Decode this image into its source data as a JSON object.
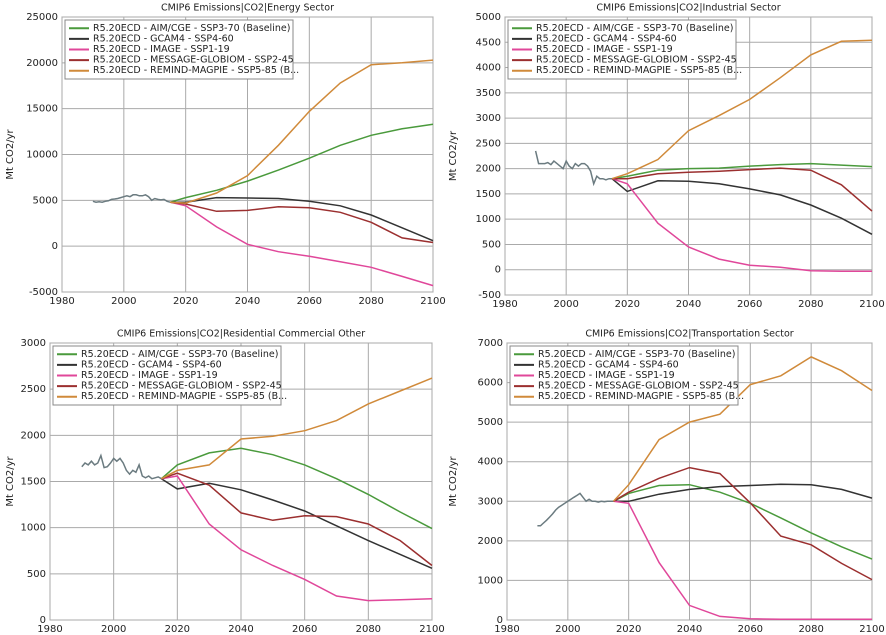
{
  "chart_data": [
    {
      "type": "line",
      "title": "CMIP6 Emissions|CO2|Energy Sector",
      "ylabel": "Mt CO2/yr",
      "xlim": [
        1980,
        2100
      ],
      "xticks": [
        1980,
        2000,
        2020,
        2040,
        2060,
        2080,
        2100
      ],
      "ylim": [
        -5000,
        25000
      ],
      "yticks": [
        -5000,
        0,
        5000,
        10000,
        15000,
        20000,
        25000
      ],
      "grid": true,
      "x": [
        2015,
        2020,
        2030,
        2040,
        2050,
        2060,
        2070,
        2080,
        2090,
        2100
      ],
      "history": {
        "color": "#6b7b80",
        "x": [
          1990,
          1991,
          1992,
          1993,
          1994,
          1995,
          1996,
          1997,
          1998,
          1999,
          2000,
          2001,
          2002,
          2003,
          2004,
          2005,
          2006,
          2007,
          2008,
          2009,
          2010,
          2011,
          2012,
          2013,
          2014,
          2015
        ],
        "values": [
          4900,
          4800,
          4850,
          4800,
          4900,
          4950,
          5100,
          5150,
          5200,
          5300,
          5400,
          5500,
          5400,
          5600,
          5600,
          5500,
          5500,
          5600,
          5400,
          5000,
          5200,
          5100,
          5050,
          5100,
          4900,
          4800
        ]
      },
      "series": [
        {
          "name": "R5.20ECD - AIM/CGE - SSP3-70 (Baseline)",
          "color": "#4a9a3c",
          "values": [
            4800,
            5300,
            6100,
            7100,
            8300,
            9600,
            11000,
            12100,
            12800,
            13300
          ]
        },
        {
          "name": "R5.20ECD - GCAM4 - SSP4-60",
          "color": "#333333",
          "values": [
            4800,
            4800,
            5300,
            5250,
            5200,
            4900,
            4400,
            3400,
            2000,
            600
          ]
        },
        {
          "name": "R5.20ECD - IMAGE - SSP1-19",
          "color": "#e0479a",
          "values": [
            4800,
            4400,
            2100,
            200,
            -600,
            -1100,
            -1700,
            -2300,
            -3300,
            -4300
          ]
        },
        {
          "name": "R5.20ECD - MESSAGE-GLOBIOM - SSP2-45",
          "color": "#9b2f2f",
          "values": [
            4800,
            4600,
            3800,
            3900,
            4300,
            4200,
            3700,
            2600,
            900,
            400
          ]
        },
        {
          "name": "R5.20ECD - REMIND-MAGPIE - SSP5-85 (B...",
          "color": "#d08a3a",
          "values": [
            4800,
            4700,
            5800,
            7700,
            11000,
            14700,
            17800,
            19800,
            20000,
            20300
          ]
        }
      ]
    },
    {
      "type": "line",
      "title": "CMIP6 Emissions|CO2|Industrial Sector",
      "ylabel": "Mt CO2/yr",
      "xlim": [
        1980,
        2100
      ],
      "xticks": [
        1980,
        2000,
        2020,
        2040,
        2060,
        2080,
        2100
      ],
      "ylim": [
        -500,
        5000
      ],
      "yticks": [
        -500,
        0,
        500,
        1000,
        1500,
        2000,
        2500,
        3000,
        3500,
        4000,
        4500,
        5000
      ],
      "grid": true,
      "x": [
        2015,
        2020,
        2030,
        2040,
        2050,
        2060,
        2070,
        2080,
        2090,
        2100
      ],
      "history": {
        "color": "#6b7b80",
        "x": [
          1990,
          1991,
          1992,
          1993,
          1994,
          1995,
          1996,
          1997,
          1998,
          1999,
          2000,
          2001,
          2002,
          2003,
          2004,
          2005,
          2006,
          2007,
          2008,
          2009,
          2010,
          2011,
          2012,
          2013,
          2014,
          2015
        ],
        "values": [
          2350,
          2100,
          2100,
          2100,
          2120,
          2080,
          2150,
          2100,
          2050,
          2000,
          2150,
          2050,
          2000,
          2100,
          2050,
          2100,
          2100,
          2050,
          1950,
          1700,
          1850,
          1800,
          1800,
          1780,
          1800,
          1800
        ]
      },
      "series": [
        {
          "name": "R5.20ECD - AIM/CGE - SSP3-70 (Baseline)",
          "color": "#4a9a3c",
          "values": [
            1800,
            1850,
            1970,
            2000,
            2010,
            2050,
            2080,
            2100,
            2070,
            2040
          ]
        },
        {
          "name": "R5.20ECD - GCAM4 - SSP4-60",
          "color": "#333333",
          "values": [
            1800,
            1550,
            1760,
            1750,
            1700,
            1600,
            1480,
            1280,
            1020,
            700
          ]
        },
        {
          "name": "R5.20ECD - IMAGE - SSP1-19",
          "color": "#e0479a",
          "values": [
            1800,
            1700,
            920,
            450,
            210,
            90,
            50,
            -20,
            -30,
            -30
          ]
        },
        {
          "name": "R5.20ECD - MESSAGE-GLOBIOM - SSP2-45",
          "color": "#9b2f2f",
          "values": [
            1800,
            1800,
            1900,
            1930,
            1950,
            1980,
            2010,
            1970,
            1680,
            1160
          ]
        },
        {
          "name": "R5.20ECD - REMIND-MAGPIE - SSP5-85 (B...",
          "color": "#d08a3a",
          "values": [
            1800,
            1900,
            2180,
            2750,
            3050,
            3370,
            3800,
            4250,
            4520,
            4540
          ]
        }
      ]
    },
    {
      "type": "line",
      "title": "CMIP6 Emissions|CO2|Residential Commercial Other",
      "ylabel": "Mt CO2/yr",
      "xlim": [
        1980,
        2100
      ],
      "xticks": [
        1980,
        2000,
        2020,
        2040,
        2060,
        2080,
        2100
      ],
      "ylim": [
        0,
        3000
      ],
      "yticks": [
        0,
        500,
        1000,
        1500,
        2000,
        2500,
        3000
      ],
      "grid": true,
      "x": [
        2015,
        2020,
        2030,
        2040,
        2050,
        2060,
        2070,
        2080,
        2090,
        2100
      ],
      "history": {
        "color": "#6b7b80",
        "x": [
          1990,
          1991,
          1992,
          1993,
          1994,
          1995,
          1996,
          1997,
          1998,
          1999,
          2000,
          2001,
          2002,
          2003,
          2004,
          2005,
          2006,
          2007,
          2008,
          2009,
          2010,
          2011,
          2012,
          2013,
          2014,
          2015
        ],
        "values": [
          1660,
          1700,
          1680,
          1720,
          1680,
          1700,
          1780,
          1650,
          1660,
          1700,
          1750,
          1720,
          1750,
          1700,
          1620,
          1580,
          1620,
          1600,
          1680,
          1560,
          1540,
          1560,
          1530,
          1540,
          1550,
          1530
        ]
      },
      "series": [
        {
          "name": "R5.20ECD - AIM/CGE - SSP3-70 (Baseline)",
          "color": "#4a9a3c",
          "values": [
            1530,
            1680,
            1810,
            1860,
            1790,
            1680,
            1530,
            1360,
            1170,
            990
          ]
        },
        {
          "name": "R5.20ECD - GCAM4 - SSP4-60",
          "color": "#333333",
          "values": [
            1530,
            1420,
            1480,
            1410,
            1300,
            1180,
            1020,
            860,
            710,
            560
          ]
        },
        {
          "name": "R5.20ECD - IMAGE - SSP1-19",
          "color": "#e0479a",
          "values": [
            1530,
            1560,
            1040,
            760,
            590,
            440,
            260,
            210,
            220,
            230
          ]
        },
        {
          "name": "R5.20ECD - MESSAGE-GLOBIOM - SSP2-45",
          "color": "#9b2f2f",
          "values": [
            1530,
            1590,
            1460,
            1160,
            1080,
            1130,
            1120,
            1040,
            860,
            590
          ]
        },
        {
          "name": "R5.20ECD - REMIND-MAGPIE - SSP5-85 (B...",
          "color": "#d08a3a",
          "values": [
            1530,
            1620,
            1680,
            1960,
            1990,
            2050,
            2160,
            2340,
            2480,
            2620
          ]
        }
      ]
    },
    {
      "type": "line",
      "title": "CMIP6 Emissions|CO2|Transportation Sector",
      "ylabel": "Mt CO2/yr",
      "xlim": [
        1980,
        2100
      ],
      "xticks": [
        1980,
        2000,
        2020,
        2040,
        2060,
        2080,
        2100
      ],
      "ylim": [
        0,
        7000
      ],
      "yticks": [
        0,
        1000,
        2000,
        3000,
        4000,
        5000,
        6000,
        7000
      ],
      "grid": true,
      "x": [
        2015,
        2020,
        2030,
        2040,
        2050,
        2060,
        2070,
        2080,
        2090,
        2100
      ],
      "history": {
        "color": "#6b7b80",
        "x": [
          1990,
          1991,
          1992,
          1993,
          1994,
          1995,
          1996,
          1997,
          1998,
          1999,
          2000,
          2001,
          2002,
          2003,
          2004,
          2005,
          2006,
          2007,
          2008,
          2009,
          2010,
          2011,
          2012,
          2013,
          2014,
          2015
        ],
        "values": [
          2380,
          2380,
          2450,
          2520,
          2600,
          2680,
          2780,
          2850,
          2900,
          2950,
          3000,
          3050,
          3100,
          3150,
          3200,
          3100,
          3000,
          3050,
          3000,
          3000,
          2980,
          3000,
          2990,
          3000,
          3000,
          3000
        ]
      },
      "series": [
        {
          "name": "R5.20ECD - AIM/CGE - SSP3-70 (Baseline)",
          "color": "#4a9a3c",
          "values": [
            3000,
            3200,
            3400,
            3420,
            3230,
            2950,
            2580,
            2200,
            1850,
            1540
          ]
        },
        {
          "name": "R5.20ECD - GCAM4 - SSP4-60",
          "color": "#333333",
          "values": [
            3000,
            3000,
            3180,
            3300,
            3370,
            3400,
            3430,
            3420,
            3300,
            3080
          ]
        },
        {
          "name": "R5.20ECD - IMAGE - SSP1-19",
          "color": "#e0479a",
          "values": [
            3000,
            2950,
            1450,
            370,
            90,
            30,
            20,
            20,
            20,
            20
          ]
        },
        {
          "name": "R5.20ECD - MESSAGE-GLOBIOM - SSP2-45",
          "color": "#9b2f2f",
          "values": [
            3000,
            3230,
            3580,
            3850,
            3700,
            2960,
            2120,
            1900,
            1430,
            1020
          ]
        },
        {
          "name": "R5.20ECD - REMIND-MAGPIE - SSP5-85 (B...",
          "color": "#d08a3a",
          "values": [
            3000,
            3420,
            4560,
            5000,
            5200,
            5950,
            6170,
            6650,
            6300,
            5800
          ]
        }
      ]
    }
  ]
}
